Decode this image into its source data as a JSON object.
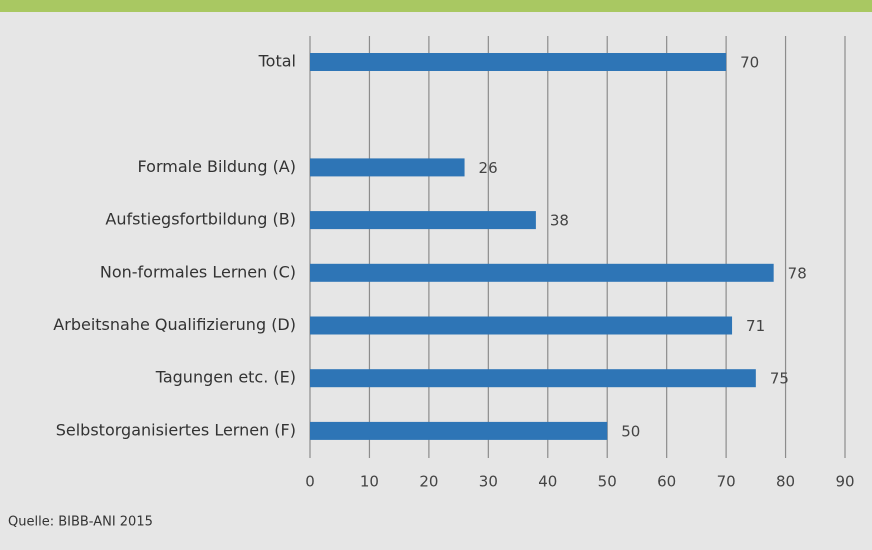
{
  "chart_data": {
    "type": "bar",
    "orientation": "horizontal",
    "categories": [
      "Total",
      null,
      "Formale Bildung (A)",
      "Aufstiegsfortbildung (B)",
      "Non-formales Lernen (C)",
      "Arbeitsnahe Qualifizierung (D)",
      "Tagungen etc. (E)",
      "Selbstorganisiertes Lernen (F)"
    ],
    "values": [
      70,
      null,
      26,
      38,
      78,
      71,
      75,
      50
    ],
    "color": "#2e75b6",
    "xlim": [
      0,
      90
    ],
    "xticks": [
      0,
      10,
      20,
      30,
      40,
      50,
      60,
      70,
      80,
      90
    ],
    "grid": true,
    "source": "Quelle: BIBB-ANI 2015"
  }
}
